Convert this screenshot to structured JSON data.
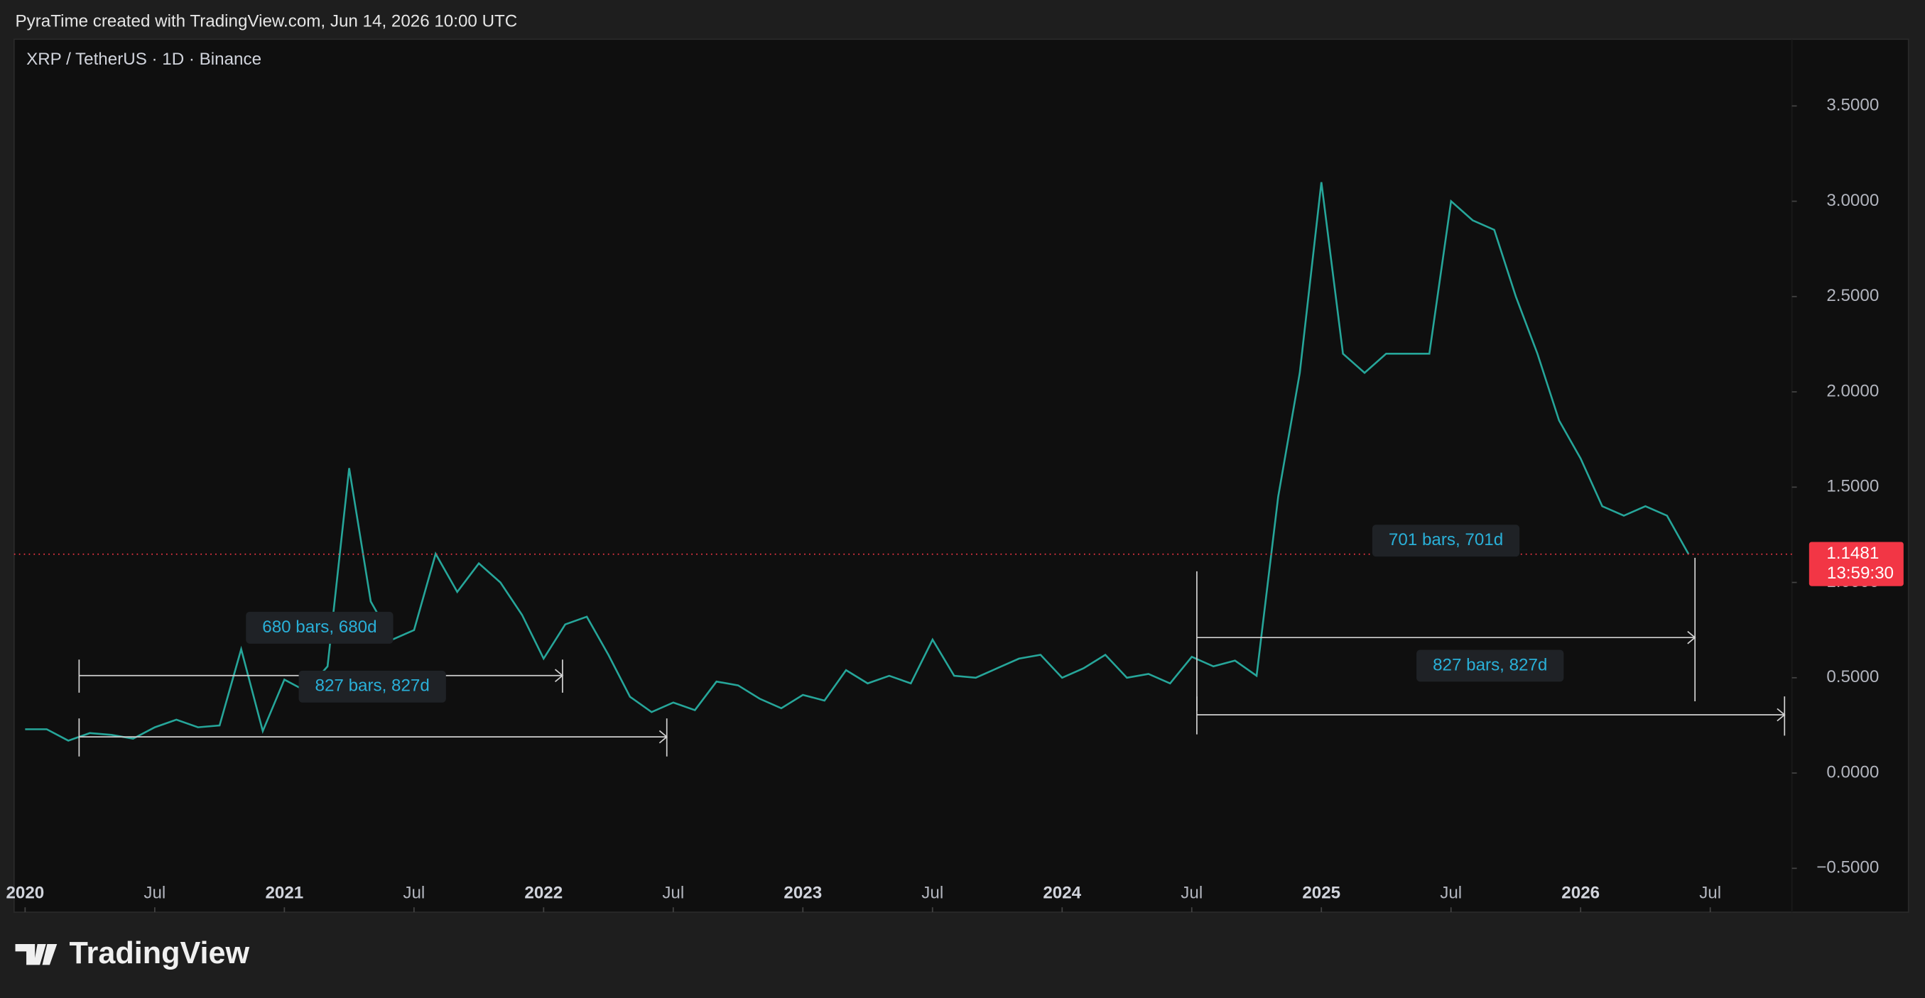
{
  "header": {
    "text": "PyraTime created with TradingView.com, Jun 14, 2026 10:00 UTC"
  },
  "chart_data": {
    "type": "line",
    "symbol": "XRP / TetherUS · 1D · Binance",
    "x": [
      "2020-01",
      "2020-02",
      "2020-03",
      "2020-04",
      "2020-05",
      "2020-06",
      "2020-07",
      "2020-08",
      "2020-09",
      "2020-10",
      "2020-11",
      "2020-12",
      "2021-01",
      "2021-02",
      "2021-03",
      "2021-04",
      "2021-05",
      "2021-06",
      "2021-07",
      "2021-08",
      "2021-09",
      "2021-10",
      "2021-11",
      "2021-12",
      "2022-01",
      "2022-02",
      "2022-03",
      "2022-04",
      "2022-05",
      "2022-06",
      "2022-07",
      "2022-08",
      "2022-09",
      "2022-10",
      "2022-11",
      "2022-12",
      "2023-01",
      "2023-02",
      "2023-03",
      "2023-04",
      "2023-05",
      "2023-06",
      "2023-07",
      "2023-08",
      "2023-09",
      "2023-10",
      "2023-11",
      "2023-12",
      "2024-01",
      "2024-02",
      "2024-03",
      "2024-04",
      "2024-05",
      "2024-06",
      "2024-07",
      "2024-08",
      "2024-09",
      "2024-10",
      "2024-11",
      "2024-12",
      "2025-01",
      "2025-02",
      "2025-03",
      "2025-04",
      "2025-05",
      "2025-06",
      "2025-07",
      "2025-08",
      "2025-09",
      "2025-10",
      "2025-11",
      "2025-12",
      "2026-01",
      "2026-02",
      "2026-03",
      "2026-04",
      "2026-05",
      "2026-06"
    ],
    "series": [
      {
        "name": "XRP / TetherUS",
        "color": "#26a69a",
        "values": [
          0.23,
          0.23,
          0.17,
          0.21,
          0.2,
          0.18,
          0.24,
          0.28,
          0.24,
          0.25,
          0.65,
          0.22,
          0.49,
          0.43,
          0.56,
          1.6,
          0.9,
          0.7,
          0.75,
          1.15,
          0.95,
          1.1,
          1.0,
          0.83,
          0.6,
          0.78,
          0.82,
          0.62,
          0.4,
          0.32,
          0.37,
          0.33,
          0.48,
          0.46,
          0.39,
          0.34,
          0.41,
          0.38,
          0.54,
          0.47,
          0.51,
          0.47,
          0.7,
          0.51,
          0.5,
          0.55,
          0.6,
          0.62,
          0.5,
          0.55,
          0.62,
          0.5,
          0.52,
          0.47,
          0.61,
          0.56,
          0.59,
          0.51,
          1.45,
          2.1,
          3.1,
          2.2,
          2.1,
          2.2,
          2.2,
          2.2,
          3.0,
          2.9,
          2.85,
          2.5,
          2.2,
          1.85,
          1.65,
          1.4,
          1.35,
          1.4,
          1.35,
          1.1481
        ]
      }
    ],
    "last_price": 1.1481,
    "countdown": "13:59:30",
    "ylim": [
      -0.73,
      3.85
    ],
    "yticks": [
      {
        "value": -0.5,
        "label": "−0.5000"
      },
      {
        "value": 0,
        "label": "0.0000"
      },
      {
        "value": 0.5,
        "label": "0.5000"
      },
      {
        "value": 1,
        "label": "1.0000"
      },
      {
        "value": 1.5,
        "label": "1.5000"
      },
      {
        "value": 2,
        "label": "2.0000"
      },
      {
        "value": 2.5,
        "label": "2.5000"
      },
      {
        "value": 3,
        "label": "3.0000"
      },
      {
        "value": 3.5,
        "label": "3.5000"
      }
    ],
    "xticks": [
      {
        "value": "2020-01",
        "label": "2020"
      },
      {
        "value": "2020-07",
        "label": "Jul"
      },
      {
        "value": "2021-01",
        "label": "2021"
      },
      {
        "value": "2021-07",
        "label": "Jul"
      },
      {
        "value": "2022-01",
        "label": "2022"
      },
      {
        "value": "2022-07",
        "label": "Jul"
      },
      {
        "value": "2023-01",
        "label": "2023"
      },
      {
        "value": "2023-07",
        "label": "Jul"
      },
      {
        "value": "2024-01",
        "label": "2024"
      },
      {
        "value": "2024-07",
        "label": "Jul"
      },
      {
        "value": "2025-01",
        "label": "2025"
      },
      {
        "value": "2025-07",
        "label": "Jul"
      },
      {
        "value": "2026-01",
        "label": "2026"
      },
      {
        "value": "2026-07",
        "label": "Jul"
      }
    ],
    "annotations": [
      "680 bars, 680d",
      "827 bars, 827d",
      "701 bars, 701d",
      "827 bars, 827d"
    ]
  },
  "footer": {
    "logo": "TradingView"
  }
}
